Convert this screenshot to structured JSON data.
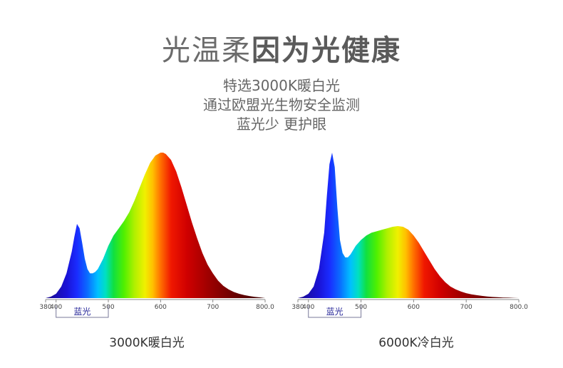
{
  "header": {
    "title_light": "光温柔",
    "title_bold": "因为光健康",
    "lines": [
      "特选3000K暖白光",
      "通过欧盟光生物安全监测",
      "蓝光少 更护眼"
    ]
  },
  "chart_data": [
    {
      "type": "area",
      "caption": "3000K暖白光",
      "xlim": [
        380,
        800
      ],
      "ticks": [
        "380",
        "400",
        "500",
        "600",
        "700",
        "800.0"
      ],
      "tick_values": [
        380,
        400,
        500,
        600,
        700,
        800
      ],
      "annotation": {
        "label": "蓝光",
        "range": [
          400,
          500
        ]
      },
      "x": [
        380,
        390,
        400,
        410,
        420,
        430,
        435,
        440,
        445,
        450,
        455,
        460,
        465,
        470,
        475,
        480,
        490,
        500,
        510,
        520,
        530,
        540,
        550,
        560,
        570,
        580,
        590,
        600,
        605,
        610,
        620,
        630,
        640,
        650,
        660,
        670,
        680,
        690,
        700,
        710,
        720,
        730,
        740,
        750,
        760,
        770,
        780,
        790,
        800
      ],
      "y": [
        0.0,
        0.01,
        0.03,
        0.08,
        0.17,
        0.32,
        0.42,
        0.51,
        0.48,
        0.38,
        0.27,
        0.2,
        0.17,
        0.17,
        0.18,
        0.2,
        0.27,
        0.36,
        0.43,
        0.48,
        0.53,
        0.59,
        0.67,
        0.76,
        0.85,
        0.93,
        0.98,
        1.0,
        1.0,
        0.99,
        0.95,
        0.87,
        0.76,
        0.64,
        0.52,
        0.41,
        0.31,
        0.23,
        0.17,
        0.12,
        0.085,
        0.06,
        0.042,
        0.03,
        0.021,
        0.014,
        0.009,
        0.005,
        0.0
      ]
    },
    {
      "type": "area",
      "caption": "6000K冷白光",
      "xlim": [
        380,
        800
      ],
      "ticks": [
        "380",
        "400",
        "500",
        "600",
        "700",
        "800.0"
      ],
      "tick_values": [
        380,
        400,
        500,
        600,
        700,
        800
      ],
      "annotation": {
        "label": "蓝光",
        "range": [
          400,
          500
        ]
      },
      "x": [
        380,
        390,
        400,
        410,
        420,
        430,
        435,
        440,
        445,
        450,
        455,
        460,
        465,
        470,
        475,
        480,
        490,
        500,
        510,
        520,
        530,
        540,
        550,
        560,
        570,
        580,
        590,
        600,
        610,
        620,
        630,
        640,
        650,
        660,
        670,
        680,
        690,
        700,
        710,
        720,
        730,
        740,
        750,
        760,
        770,
        780,
        790,
        800
      ],
      "y": [
        0.0,
        0.01,
        0.03,
        0.08,
        0.2,
        0.45,
        0.7,
        0.92,
        1.0,
        0.9,
        0.62,
        0.4,
        0.31,
        0.28,
        0.28,
        0.3,
        0.36,
        0.4,
        0.43,
        0.45,
        0.46,
        0.47,
        0.48,
        0.49,
        0.495,
        0.49,
        0.47,
        0.43,
        0.38,
        0.32,
        0.26,
        0.2,
        0.15,
        0.11,
        0.08,
        0.06,
        0.045,
        0.034,
        0.026,
        0.02,
        0.015,
        0.011,
        0.008,
        0.006,
        0.004,
        0.003,
        0.0015,
        0.0
      ]
    }
  ]
}
